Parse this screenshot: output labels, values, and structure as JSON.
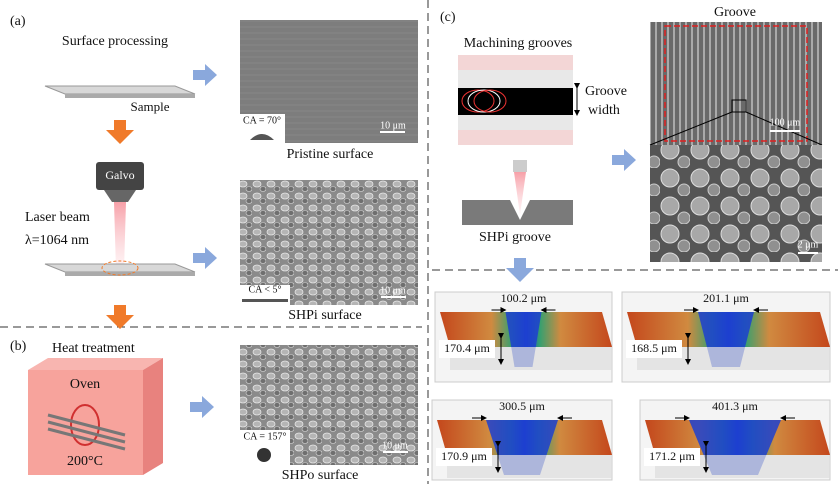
{
  "panel_a": {
    "label": "(a)",
    "step_title": "Surface processing",
    "sample_label": "Sample",
    "galvo_label": "Galvo",
    "laser_label": "Laser beam",
    "wavelength_label": "λ=1064 nm",
    "images": [
      {
        "ca_label": "CA = 70°",
        "scale_label": "10 μm",
        "caption": "Pristine surface"
      },
      {
        "ca_label": "CA < 5°",
        "scale_label": "10 μm",
        "caption": "SHPi surface"
      }
    ]
  },
  "panel_b": {
    "label": "(b)",
    "step_title": "Heat treatment",
    "oven_label": "Oven",
    "temperature_label": "200°C",
    "image": {
      "ca_label": "CA = 157°",
      "scale_label": "10 μm",
      "caption": "SHPo surface"
    }
  },
  "panel_c": {
    "label": "(c)",
    "step_title": "Machining grooves",
    "groove_width_label": [
      "Groove",
      "width"
    ],
    "groove_caption": "SHPi groove",
    "sem_title": "Groove",
    "sem_scales": [
      "100 μm",
      "2 μm"
    ],
    "profiles": [
      {
        "width_label": "100.2 μm",
        "depth_label": "170.4 μm"
      },
      {
        "width_label": "201.1 μm",
        "depth_label": "168.5 μm"
      },
      {
        "width_label": "300.5 μm",
        "depth_label": "170.9 μm"
      },
      {
        "width_label": "401.3 μm",
        "depth_label": "171.2 μm"
      }
    ]
  }
}
